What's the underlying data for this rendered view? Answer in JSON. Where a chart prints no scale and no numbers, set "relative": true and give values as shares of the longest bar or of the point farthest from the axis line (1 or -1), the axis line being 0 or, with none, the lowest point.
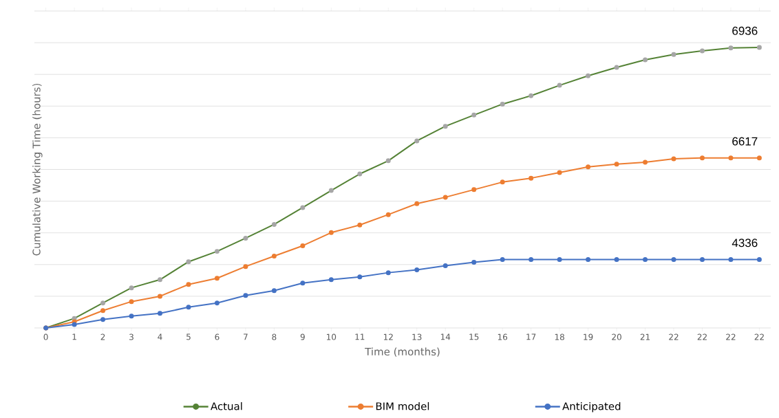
{
  "chart_data": {
    "type": "line",
    "relative": true,
    "xlabel": "Time (months)",
    "ylabel": "Cumulative Working Time (hours)",
    "categories": [
      "0",
      "1",
      "2",
      "3",
      "4",
      "5",
      "6",
      "7",
      "8",
      "9",
      "10",
      "11",
      "12",
      "13",
      "14",
      "15",
      "16",
      "17",
      "18",
      "19",
      "20",
      "21",
      "22",
      "22",
      "22",
      "22"
    ],
    "series": [
      {
        "name": "Actual",
        "color": "#548235",
        "values": [
          0,
          0.034,
          0.089,
          0.143,
          0.172,
          0.236,
          0.273,
          0.32,
          0.369,
          0.429,
          0.49,
          0.549,
          0.596,
          0.667,
          0.719,
          0.759,
          0.798,
          0.828,
          0.865,
          0.899,
          0.929,
          0.956,
          0.975,
          0.988,
          0.998,
          1
        ]
      },
      {
        "name": "BIM model",
        "color": "#ed7d31",
        "values": [
          0,
          0.022,
          0.062,
          0.094,
          0.113,
          0.155,
          0.177,
          0.219,
          0.256,
          0.293,
          0.34,
          0.367,
          0.404,
          0.443,
          0.466,
          0.493,
          0.52,
          0.534,
          0.554,
          0.574,
          0.584,
          0.591,
          0.603,
          0.606,
          0.606,
          0.606
        ]
      },
      {
        "name": "Anticipated",
        "color": "#4472c4",
        "values": [
          0,
          0.012,
          0.03,
          0.042,
          0.052,
          0.074,
          0.089,
          0.116,
          0.133,
          0.16,
          0.172,
          0.182,
          0.197,
          0.207,
          0.222,
          0.234,
          0.244,
          0.244,
          0.244,
          0.244,
          0.244,
          0.244,
          0.244,
          0.244,
          0.244,
          0.244
        ]
      }
    ],
    "annotations": [
      "6936",
      "6617",
      "4336"
    ],
    "grid": "y",
    "legend": "bottom",
    "marker": "circle",
    "line_style": "solid"
  }
}
